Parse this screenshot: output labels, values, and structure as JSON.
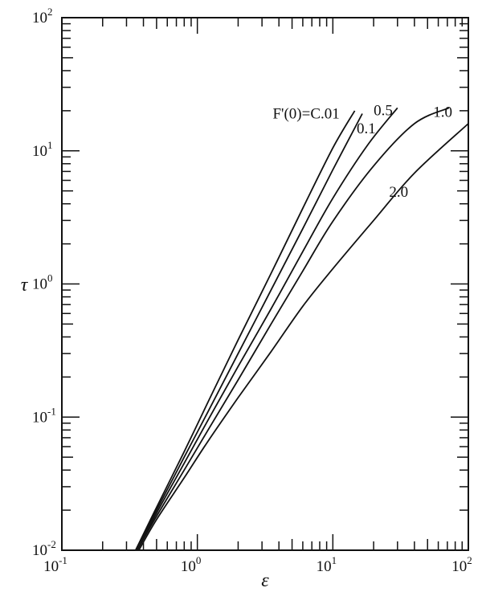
{
  "chart_data": {
    "type": "line",
    "title": "",
    "xlabel": "ε",
    "ylabel": "τ",
    "xscale": "log",
    "yscale": "log",
    "xlim": [
      0.1,
      100
    ],
    "ylim": [
      0.01,
      100
    ],
    "grid": false,
    "x_ticks": [
      {
        "base": "10",
        "exp": "-1",
        "value": 0.1
      },
      {
        "base": "10",
        "exp": "0",
        "value": 1
      },
      {
        "base": "10",
        "exp": "1",
        "value": 10
      },
      {
        "base": "10",
        "exp": "2",
        "value": 100
      }
    ],
    "y_ticks": [
      {
        "base": "10",
        "exp": "-2",
        "value": 0.01
      },
      {
        "base": "10",
        "exp": "-1",
        "value": 0.1
      },
      {
        "base": "10",
        "exp": "0",
        "value": 1
      },
      {
        "base": "10",
        "exp": "1",
        "value": 10
      },
      {
        "base": "10",
        "exp": "2",
        "value": 100
      }
    ],
    "series": [
      {
        "name": "F'(0)=C.01",
        "label_at": [
          3.6,
          17.5
        ],
        "x": [
          0.35,
          0.5,
          0.8,
          1.2,
          2,
          3.5,
          6,
          10,
          14.5
        ],
        "y": [
          0.01,
          0.021,
          0.055,
          0.13,
          0.38,
          1.2,
          3.7,
          10.5,
          20
        ]
      },
      {
        "name": "0.1",
        "label_at": [
          15,
          13.5
        ],
        "x": [
          0.35,
          0.5,
          0.8,
          1.2,
          2,
          3.5,
          6,
          10,
          16.5
        ],
        "y": [
          0.01,
          0.02,
          0.05,
          0.11,
          0.3,
          0.9,
          2.6,
          7.2,
          19
        ]
      },
      {
        "name": "0.5",
        "label_at": [
          20,
          18.5
        ],
        "x": [
          0.36,
          0.5,
          0.8,
          1.2,
          2,
          3.5,
          6,
          10,
          18,
          30
        ],
        "y": [
          0.01,
          0.019,
          0.045,
          0.095,
          0.24,
          0.65,
          1.75,
          4.4,
          11,
          21
        ]
      },
      {
        "name": "1.0",
        "label_at": [
          55,
          18
        ],
        "x": [
          0.36,
          0.5,
          0.8,
          1.2,
          2,
          3.5,
          6,
          10,
          20,
          40,
          72
        ],
        "y": [
          0.01,
          0.018,
          0.04,
          0.08,
          0.19,
          0.5,
          1.25,
          2.95,
          7.7,
          16,
          21
        ]
      },
      {
        "name": "2.0",
        "label_at": [
          26,
          4.5
        ],
        "x": [
          0.37,
          0.5,
          0.8,
          1.2,
          2,
          3.5,
          6,
          10,
          20,
          40,
          100
        ],
        "y": [
          0.01,
          0.017,
          0.035,
          0.066,
          0.14,
          0.31,
          0.68,
          1.3,
          3,
          6.8,
          16
        ]
      }
    ]
  }
}
